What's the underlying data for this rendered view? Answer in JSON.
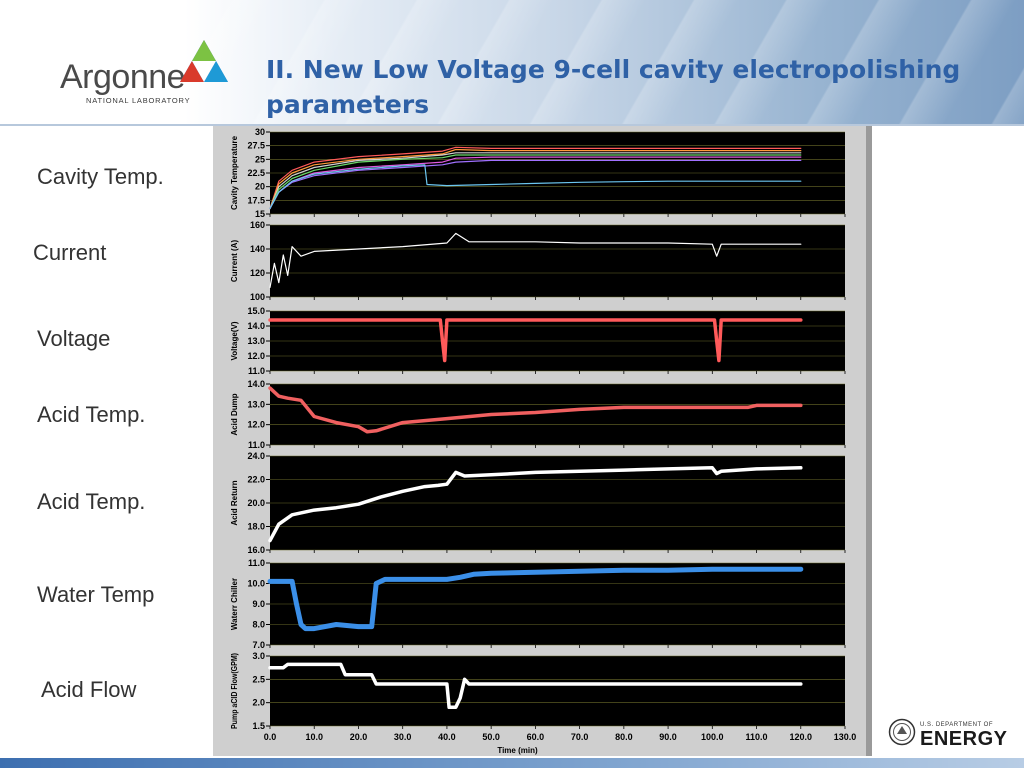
{
  "title": "II. New Low Voltage 9-cell cavity electropolishing parameters",
  "logo": {
    "name": "Argonne",
    "sub": "NATIONAL LABORATORY"
  },
  "doe": {
    "small": "U.S. DEPARTMENT OF",
    "big": "ENERGY"
  },
  "labels": [
    "Cavity Temp.",
    "Current",
    "Voltage",
    "Acid Temp.",
    "Acid Temp.",
    "Water Temp",
    "Acid Flow"
  ],
  "colors": {
    "title": "#2f61a6",
    "plot_bg": "#000000",
    "frame": "#cfcfcf"
  },
  "chart_data": {
    "type": "line",
    "xlabel": "Time (min)",
    "xlim": [
      0,
      130
    ],
    "xticks": [
      "0.0",
      "10.0",
      "20.0",
      "30.0",
      "40.0",
      "50.0",
      "60.0",
      "70.0",
      "80.0",
      "90.0",
      "100.0",
      "110.0",
      "120.0",
      "130.0"
    ],
    "panels": [
      {
        "ylabel": "Cavity Temperature",
        "ylim": [
          15,
          30
        ],
        "yticks": [
          "30",
          "27.5",
          "25",
          "22.5",
          "20",
          "17.5",
          "15"
        ],
        "series": [
          {
            "color": "#ff5a5a",
            "x": [
              0,
              2,
              5,
              10,
              20,
              30,
              39,
              42,
              50,
              60,
              70,
              80,
              90,
              100,
              110,
              120
            ],
            "y": [
              16,
              21,
              23,
              24.5,
              25.5,
              26,
              26.5,
              27.2,
              27,
              27,
              27,
              27,
              27,
              27,
              27,
              27
            ]
          },
          {
            "color": "#ff9a3a",
            "x": [
              0,
              2,
              5,
              10,
              20,
              30,
              39,
              42,
              50,
              60,
              70,
              80,
              90,
              100,
              110,
              120
            ],
            "y": [
              16,
              20.5,
              22.5,
              24,
              25,
              25.5,
              26,
              26.8,
              26.6,
              26.6,
              26.6,
              26.6,
              26.6,
              26.6,
              26.6,
              26.6
            ]
          },
          {
            "color": "#d0d0d0",
            "x": [
              0,
              2,
              5,
              10,
              20,
              30,
              39,
              42,
              50,
              60,
              70,
              80,
              90,
              100,
              110,
              120
            ],
            "y": [
              16,
              20,
              22,
              23.5,
              24.8,
              25.2,
              25.8,
              26.2,
              26.2,
              26.2,
              26.2,
              26.2,
              26.2,
              26.2,
              26.2,
              26.2
            ]
          },
          {
            "color": "#6ad86a",
            "x": [
              0,
              2,
              5,
              10,
              20,
              30,
              39,
              42,
              50,
              60,
              70,
              80,
              90,
              100,
              110,
              120
            ],
            "y": [
              16,
              19.5,
              21.5,
              23,
              24.5,
              25,
              25.3,
              25.8,
              25.8,
              25.8,
              25.8,
              25.8,
              25.8,
              25.8,
              25.8,
              25.8
            ]
          },
          {
            "color": "#e05ae0",
            "x": [
              0,
              2,
              5,
              10,
              20,
              30,
              39,
              42,
              50,
              60,
              70,
              80,
              90,
              100,
              110,
              120
            ],
            "y": [
              16,
              19,
              21,
              22.5,
              23.5,
              24,
              24.5,
              25.2,
              25.4,
              25.4,
              25.4,
              25.4,
              25.4,
              25.4,
              25.4,
              25.4
            ]
          },
          {
            "color": "#a070ff",
            "x": [
              0,
              2,
              5,
              10,
              20,
              30,
              39,
              42,
              50,
              60,
              70,
              80,
              90,
              100,
              110,
              120
            ],
            "y": [
              16,
              19,
              20.8,
              22,
              23,
              23.5,
              24,
              24.5,
              24.8,
              24.8,
              24.8,
              24.8,
              24.8,
              24.8,
              24.8,
              24.8
            ]
          },
          {
            "color": "#6cc6f0",
            "x": [
              0,
              2,
              5,
              10,
              20,
              30,
              35,
              35.5,
              40,
              50,
              60,
              70,
              80,
              90,
              100,
              110,
              120
            ],
            "y": [
              16,
              19,
              21,
              22.3,
              23.2,
              23.8,
              24,
              20.4,
              20.2,
              20.4,
              20.6,
              20.8,
              20.9,
              21,
              21,
              21,
              21
            ]
          }
        ]
      },
      {
        "ylabel": "Current (A)",
        "ylim": [
          100,
          160
        ],
        "yticks": [
          "160",
          "140",
          "120",
          "100"
        ],
        "series": [
          {
            "color": "#ffffff",
            "x": [
              0,
              1,
              2,
              3,
              4,
              5,
              7,
              10,
              20,
              30,
              40,
              42,
              45,
              50,
              60,
              70,
              80,
              90,
              100,
              101,
              102,
              110,
              120
            ],
            "y": [
              108,
              128,
              112,
              135,
              118,
              142,
              134,
              138,
              140,
              142,
              145,
              153,
              146,
              146,
              146,
              145,
              145,
              145,
              144,
              134,
              144,
              144,
              144
            ]
          }
        ]
      },
      {
        "ylabel": "Voltage(V)",
        "ylim": [
          11,
          15
        ],
        "yticks": [
          "15.0",
          "14.0",
          "13.0",
          "12.0",
          "11.0"
        ],
        "series": [
          {
            "color": "#ff5a5a",
            "x": [
              0,
              38.5,
              39,
              39.5,
              40,
              100.5,
              101,
              101.5,
              102,
              120
            ],
            "y": [
              14.4,
              14.4,
              13,
              11.7,
              14.4,
              14.4,
              13,
              11.7,
              14.4,
              14.4
            ]
          }
        ]
      },
      {
        "ylabel": "Acid Dump",
        "ylim": [
          11,
          14
        ],
        "yticks": [
          "14.0",
          "13.0",
          "12.0",
          "11.0"
        ],
        "series": [
          {
            "color": "#f06060",
            "x": [
              0,
              2,
              4,
              7,
              10,
              15,
              20,
              22,
              24,
              30,
              40,
              50,
              60,
              70,
              80,
              90,
              100,
              108,
              110,
              120
            ],
            "y": [
              13.8,
              13.4,
              13.3,
              13.2,
              12.4,
              12.1,
              11.9,
              11.65,
              11.7,
              12.1,
              12.3,
              12.5,
              12.6,
              12.75,
              12.85,
              12.85,
              12.85,
              12.85,
              12.95,
              12.95
            ]
          }
        ]
      },
      {
        "ylabel": "Acid Return",
        "ylim": [
          16,
          24
        ],
        "yticks": [
          "24.0",
          "22.0",
          "20.0",
          "18.0",
          "16.0"
        ],
        "series": [
          {
            "color": "#ffffff",
            "x": [
              0,
              2,
              5,
              10,
              15,
              20,
              25,
              30,
              35,
              38,
              40,
              42,
              44,
              50,
              60,
              70,
              80,
              90,
              100,
              101,
              102,
              110,
              120
            ],
            "y": [
              16.8,
              18.2,
              19,
              19.4,
              19.6,
              19.9,
              20.5,
              21,
              21.4,
              21.5,
              21.6,
              22.6,
              22.3,
              22.4,
              22.6,
              22.7,
              22.8,
              22.9,
              23,
              22.5,
              22.7,
              22.9,
              23
            ]
          }
        ]
      },
      {
        "ylabel": "Waterr Chiller",
        "ylim": [
          7,
          11
        ],
        "yticks": [
          "11.0",
          "10.0",
          "9.0",
          "8.0",
          "7.0"
        ],
        "series": [
          {
            "color": "#3b8fe8",
            "x": [
              0,
              5,
              6,
              7,
              8,
              10,
              15,
              20,
              23,
              24,
              26,
              35,
              40,
              43,
              46,
              50,
              60,
              70,
              80,
              90,
              100,
              110,
              120
            ],
            "y": [
              10.1,
              10.1,
              9,
              8,
              7.8,
              7.8,
              8,
              7.9,
              7.9,
              10,
              10.2,
              10.2,
              10.2,
              10.3,
              10.45,
              10.5,
              10.55,
              10.6,
              10.65,
              10.65,
              10.7,
              10.7,
              10.7
            ]
          }
        ]
      },
      {
        "ylabel": "Pump aCID Flow(GPM)",
        "ylim": [
          1.5,
          3
        ],
        "yticks": [
          "3.0",
          "2.5",
          "2.0",
          "1.5"
        ],
        "series": [
          {
            "color": "#ffffff",
            "x": [
              0,
              3,
              4,
              16,
              17,
              22,
              23,
              24,
              40,
              40.5,
              42,
              43,
              44,
              45,
              50,
              60,
              70,
              80,
              90,
              100,
              110,
              120
            ],
            "y": [
              2.75,
              2.75,
              2.82,
              2.82,
              2.6,
              2.6,
              2.6,
              2.4,
              2.4,
              1.9,
              1.9,
              2.1,
              2.5,
              2.4,
              2.4,
              2.4,
              2.4,
              2.4,
              2.4,
              2.4,
              2.4,
              2.4
            ]
          }
        ]
      }
    ]
  }
}
